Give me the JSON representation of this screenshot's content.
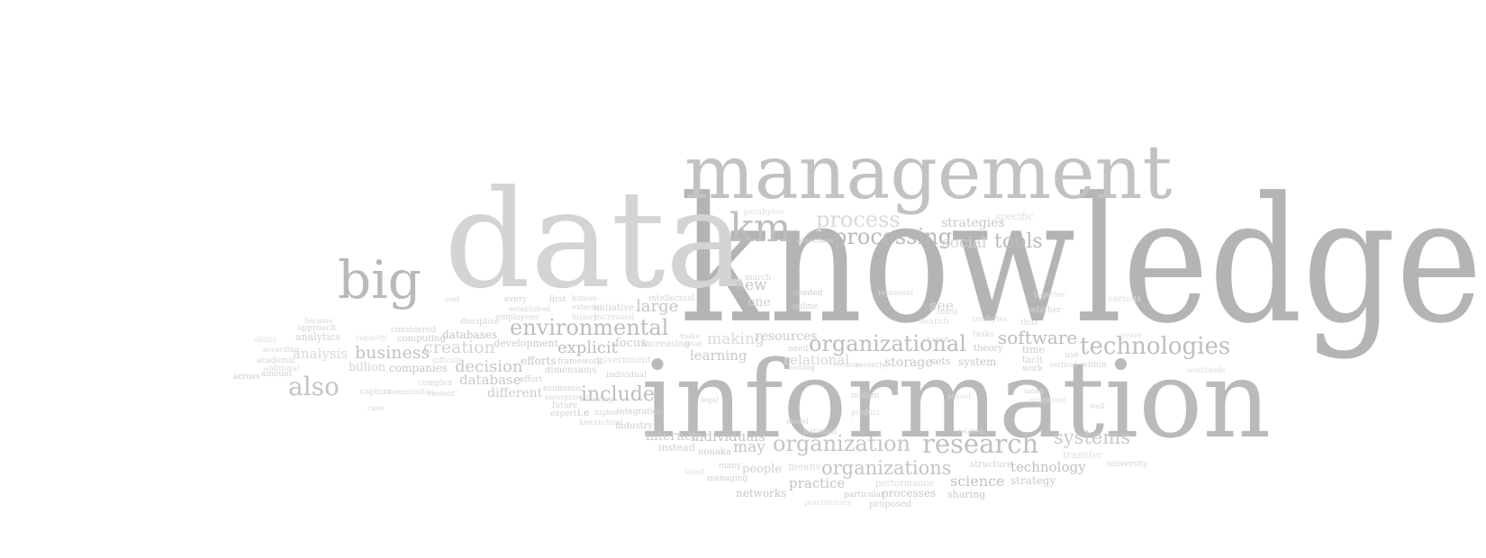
{
  "words": [
    {
      "text": "knowledge",
      "color": "#b4b4b4"
    },
    {
      "text": "information",
      "color": "#bababa"
    },
    {
      "text": "management",
      "color": "#c2c2c2"
    },
    {
      "text": "data",
      "color": "#d4d4d4"
    },
    {
      "text": "big",
      "color": "#b9b9b9"
    },
    {
      "text": "km",
      "color": "#bdbdbd"
    },
    {
      "text": "process",
      "color": "#dadada"
    },
    {
      "text": "processing",
      "color": "#b9b9b9"
    },
    {
      "text": "strategies",
      "color": "#c8c8c8"
    },
    {
      "text": "specific",
      "color": "#dedede"
    },
    {
      "text": "social",
      "color": "#d2d2d2"
    },
    {
      "text": "tools",
      "color": "#bcbcbc"
    },
    {
      "text": "environmental",
      "color": "#bdbdbd"
    },
    {
      "text": "large",
      "color": "#c4c4c4"
    },
    {
      "text": "new",
      "color": "#c4c4c4"
    },
    {
      "text": "one",
      "color": "#cfcfcf"
    },
    {
      "text": "software",
      "color": "#bcbcbc"
    },
    {
      "text": "organizational",
      "color": "#bdbdbd"
    },
    {
      "text": "technologies",
      "color": "#bebebe"
    },
    {
      "text": "creation",
      "color": "#d4d4d4"
    },
    {
      "text": "explicit",
      "color": "#bdbdbd"
    },
    {
      "text": "focus",
      "color": "#c9c9c9"
    },
    {
      "text": "making",
      "color": "#d9d9d9"
    },
    {
      "text": "learning",
      "color": "#c9c9c9"
    },
    {
      "text": "resources",
      "color": "#c9c9c9"
    },
    {
      "text": "relational",
      "color": "#d6d6d6"
    },
    {
      "text": "business",
      "color": "#c2c2c2"
    },
    {
      "text": "analysis",
      "color": "#d9d9d9"
    },
    {
      "text": "analytics",
      "color": "#d2d2d2"
    },
    {
      "text": "databases",
      "color": "#c4c4c4"
    },
    {
      "text": "development",
      "color": "#cbcbcb"
    },
    {
      "text": "decision",
      "color": "#c6c6c6"
    },
    {
      "text": "database",
      "color": "#c9c9c9"
    },
    {
      "text": "efforts",
      "color": "#c6c6c6"
    },
    {
      "text": "also",
      "color": "#c4c4c4"
    },
    {
      "text": "billion",
      "color": "#d3d3d3"
    },
    {
      "text": "companies",
      "color": "#c7c7c7"
    },
    {
      "text": "different",
      "color": "#cdcdcd"
    },
    {
      "text": "include",
      "color": "#bebebe"
    },
    {
      "text": "systems",
      "color": "#c8c8c8"
    },
    {
      "text": "research",
      "color": "#c0c0c0"
    },
    {
      "text": "organization",
      "color": "#c4c4c4"
    },
    {
      "text": "organizations",
      "color": "#c4c4c4"
    },
    {
      "text": "individuals",
      "color": "#c4c4c4"
    },
    {
      "text": "internet",
      "color": "#cbcbcb"
    },
    {
      "text": "may",
      "color": "#c6c6c6"
    },
    {
      "text": "people",
      "color": "#d0d0d0"
    },
    {
      "text": "practice",
      "color": "#c4c4c4"
    },
    {
      "text": "means",
      "color": "#dcdcdc"
    },
    {
      "text": "technology",
      "color": "#c0c0c0"
    },
    {
      "text": "science",
      "color": "#c2c2c2"
    },
    {
      "text": "processes",
      "color": "#c9c9c9"
    },
    {
      "text": "networks",
      "color": "#c6c6c6"
    },
    {
      "text": "storage",
      "color": "#c6c6c6"
    },
    {
      "text": "sets",
      "color": "#c6c6c6"
    },
    {
      "text": "system",
      "color": "#c6c6c6"
    },
    {
      "text": "time",
      "color": "#cbcbcb"
    },
    {
      "text": "theory",
      "color": "#cbcbcb"
    },
    {
      "text": "tacit",
      "color": "#d2d2d2"
    },
    {
      "text": "work",
      "color": "#d2d2d2"
    },
    {
      "text": "strategy",
      "color": "#cbcbcb"
    },
    {
      "text": "structure",
      "color": "#d2d2d2"
    },
    {
      "text": "sharing",
      "color": "#cbcbcb"
    },
    {
      "text": "transfer",
      "color": "#e2e2e2"
    },
    {
      "text": "university",
      "color": "#d6d6d6"
    },
    {
      "text": "performance",
      "color": "#dbdbdb"
    },
    {
      "text": "particular",
      "color": "#cbcbcb"
    },
    {
      "text": "proposed",
      "color": "#d0d0d0"
    },
    {
      "text": "instead",
      "color": "#cfcfcf"
    },
    {
      "text": "nonaka",
      "color": "#cbcbcb"
    },
    {
      "text": "managing",
      "color": "#d0d0d0"
    },
    {
      "text": "many",
      "color": "#d2d2d2"
    },
    {
      "text": "national",
      "color": "#d4d4d4"
    },
    {
      "text": "industry",
      "color": "#cbcbcb"
    },
    {
      "text": "integration",
      "color": "#cbcbcb"
    },
    {
      "text": "i.e",
      "color": "#c6c6c6"
    },
    {
      "text": "future",
      "color": "#d2d2d2"
    },
    {
      "text": "expert",
      "color": "#d2d2d2"
    },
    {
      "text": "economic",
      "color": "#d2d2d2"
    },
    {
      "text": "dimensions",
      "color": "#cfcfcf"
    },
    {
      "text": "effort",
      "color": "#cfcfcf"
    },
    {
      "text": "framework",
      "color": "#d2d2d2"
    },
    {
      "text": "government",
      "color": "#dcdcdc"
    },
    {
      "text": "individual",
      "color": "#d2d2d2"
    },
    {
      "text": "increasing",
      "color": "#d2d2d2"
    },
    {
      "text": "computing",
      "color": "#cbcbcb"
    },
    {
      "text": "capture",
      "color": "#d4d4d4"
    },
    {
      "text": "considered",
      "color": "#d4d4d4"
    },
    {
      "text": "complex",
      "color": "#d6d6d6"
    },
    {
      "text": "approach",
      "color": "#d4d4d4"
    },
    {
      "text": "amount",
      "color": "#d4d4d4"
    },
    {
      "text": "academic",
      "color": "#d4d4d4"
    },
    {
      "text": "additional",
      "color": "#dbdbdb"
    },
    {
      "text": "according",
      "color": "#d6d6d6"
    },
    {
      "text": "across",
      "color": "#cbcbcb"
    },
    {
      "text": "ability",
      "color": "#dddddd"
    },
    {
      "text": "became",
      "color": "#dadada"
    },
    {
      "text": "discipline",
      "color": "#d4d4d4"
    },
    {
      "text": "initiative",
      "color": "#d4d4d4"
    },
    {
      "text": "increased",
      "color": "#dcdcdc"
    },
    {
      "text": "history",
      "color": "#d6d6d6"
    },
    {
      "text": "employees",
      "color": "#d6d6d6"
    },
    {
      "text": "every",
      "color": "#d0d0d0"
    },
    {
      "text": "first",
      "color": "#d2d2d2"
    },
    {
      "text": "established",
      "color": "#d6d6d6"
    },
    {
      "text": "intellectual",
      "color": "#d4d4d4"
    },
    {
      "text": "external",
      "color": "#d6d6d6"
    },
    {
      "text": "human",
      "color": "#d6d6d6"
    },
    {
      "text": "objectives",
      "color": "#d0d0d0"
    },
    {
      "text": "needed",
      "color": "#cfcfcf"
    },
    {
      "text": "online",
      "color": "#d0d0d0"
    },
    {
      "text": "petabytes",
      "color": "#e0e0e0"
    },
    {
      "text": "march",
      "color": "#d6d6d6"
    },
    {
      "text": "need",
      "color": "#d2d2d2"
    },
    {
      "text": "moving",
      "color": "#d6d6d6"
    },
    {
      "text": "see",
      "color": "#d6d6d6"
    },
    {
      "text": "search",
      "color": "#dddddd"
    },
    {
      "text": "shared",
      "color": "#d6d6d6"
    },
    {
      "text": "represent",
      "color": "#d6d6d6"
    },
    {
      "text": "tasks",
      "color": "#d6d6d6"
    },
    {
      "text": "thus",
      "color": "#d6d6d6"
    },
    {
      "text": "whither",
      "color": "#d6d6d6"
    },
    {
      "text": "various",
      "color": "#dddddd"
    },
    {
      "text": "vertical",
      "color": "#d4d4d4"
    },
    {
      "text": "within",
      "color": "#d0d0d0"
    },
    {
      "text": "use",
      "color": "#d6d6d6"
    },
    {
      "text": "using",
      "color": "#d4d4d4"
    },
    {
      "text": "well",
      "color": "#d6d6d6"
    },
    {
      "text": "years",
      "color": "#dadada"
    },
    {
      "text": "related",
      "color": "#d6d6d6"
    },
    {
      "text": "model",
      "color": "#d6d6d6"
    },
    {
      "text": "million",
      "color": "#d6d6d6"
    },
    {
      "text": "recently",
      "color": "#d6d6d6"
    },
    {
      "text": "records",
      "color": "#dadada"
    },
    {
      "text": "legal",
      "color": "#d6d6d6"
    },
    {
      "text": "level",
      "color": "#d6d6d6"
    },
    {
      "text": "make",
      "color": "#d6d6d6"
    },
    {
      "text": "hierarchical",
      "color": "#d6d6d6"
    },
    {
      "text": "higher",
      "color": "#d6d6d6"
    },
    {
      "text": "following",
      "color": "#d6d6d6"
    },
    {
      "text": "enterprise",
      "color": "#d6d6d6"
    },
    {
      "text": "content",
      "color": "#d6d6d6"
    },
    {
      "text": "communities",
      "color": "#d6d6d6"
    },
    {
      "text": "case",
      "color": "#d6d6d6"
    },
    {
      "text": "latest",
      "color": "#dadada"
    },
    {
      "text": "practitioners",
      "color": "#e0e0e0"
    },
    {
      "text": "simon",
      "color": "#d8d8d8"
    },
    {
      "text": "terabytes",
      "color": "#d8d8d8"
    },
    {
      "text": "together",
      "color": "#dcdcdc"
    },
    {
      "text": "suggested",
      "color": "#dcdcdc"
    },
    {
      "text": "school",
      "color": "#dcdcdc"
    },
    {
      "text": "worldwide",
      "color": "#dcdcdc"
    },
    {
      "text": "product",
      "color": "#dcdcdc"
    },
    {
      "text": "cost",
      "color": "#d6d6d6"
    },
    {
      "text": "capacity",
      "color": "#dadada"
    },
    {
      "text": "difficult",
      "color": "#dadada"
    }
  ]
}
